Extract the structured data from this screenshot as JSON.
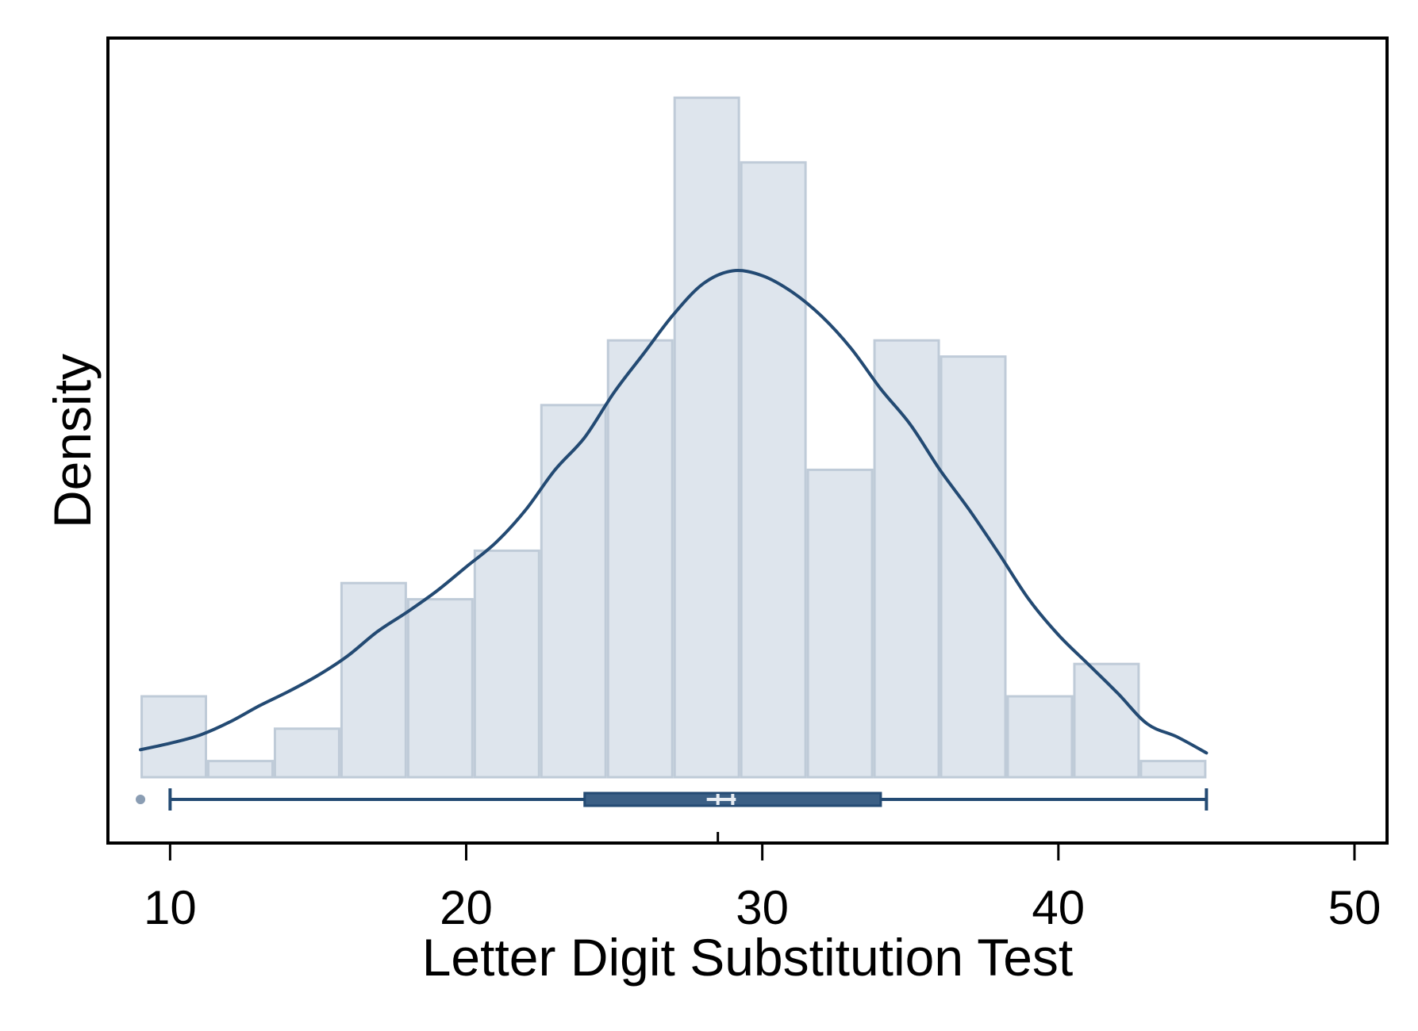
{
  "chart_data": {
    "type": "histogram",
    "xlabel": "Letter Digit Substitution Test",
    "ylabel": "Density",
    "xlim": [
      7.9,
      51.1
    ],
    "xticks": [
      10,
      20,
      30,
      40,
      50
    ],
    "y_tick_labels_shown": false,
    "grid": false,
    "bin_edges": [
      9.0,
      11.25,
      13.5,
      15.75,
      18.0,
      20.25,
      22.5,
      24.75,
      27.0,
      29.25,
      31.5,
      33.75,
      36.0,
      38.25,
      40.5,
      42.75,
      45.0
    ],
    "counts": [
      5,
      1,
      3,
      12,
      11,
      14,
      23,
      27,
      42,
      38,
      19,
      27,
      26,
      5,
      7,
      1
    ],
    "density_curve": {
      "x": [
        9.0,
        10.0,
        11.0,
        12.0,
        13.0,
        14.0,
        15.0,
        16.0,
        17.0,
        18.0,
        19.0,
        20.0,
        21.0,
        22.0,
        23.0,
        24.0,
        25.0,
        26.0,
        27.0,
        28.0,
        29.0,
        30.0,
        31.0,
        32.0,
        33.0,
        34.0,
        35.0,
        36.0,
        37.0,
        38.0,
        39.0,
        40.0,
        41.0,
        42.0,
        43.0,
        44.0,
        45.0
      ],
      "y": [
        1.7,
        2.1,
        2.6,
        3.4,
        4.4,
        5.3,
        6.3,
        7.5,
        9.0,
        10.2,
        11.5,
        13.0,
        14.5,
        16.5,
        19.0,
        21.0,
        23.8,
        26.2,
        28.6,
        30.5,
        31.3,
        31.0,
        30.0,
        28.5,
        26.5,
        24.0,
        21.8,
        19.0,
        16.5,
        13.8,
        11.0,
        8.8,
        7.0,
        5.2,
        3.3,
        2.5,
        1.5
      ]
    },
    "boxplot": {
      "min": 10,
      "q1": 24,
      "median": 28.5,
      "mean": 29,
      "q3": 34,
      "max": 45,
      "outliers": [
        9
      ]
    },
    "colors": {
      "bar_fill": "#dee5ed",
      "bar_stroke": "#bfcbd8",
      "curve": "#234a73",
      "box_fill": "#3b5f85",
      "frame": "#000000"
    }
  }
}
